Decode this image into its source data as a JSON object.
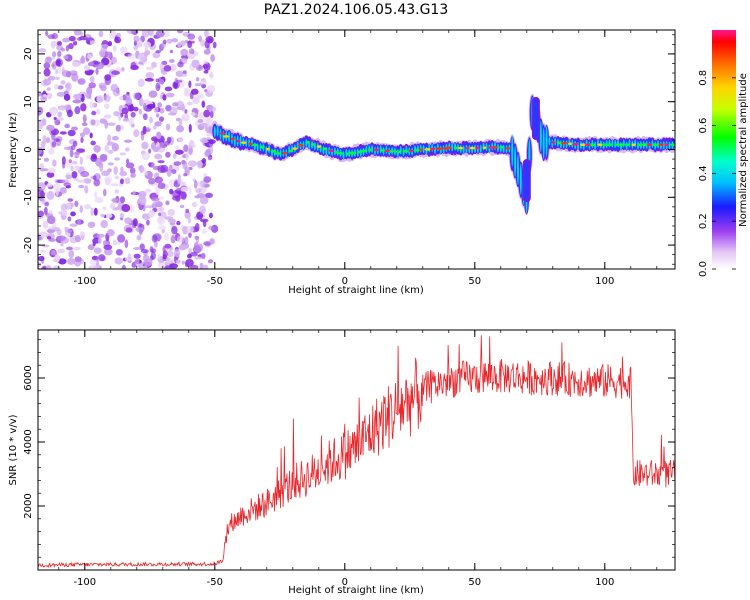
{
  "title": "PAZ1.2024.106.05.43.G13",
  "chart_data": [
    {
      "type": "heatmap",
      "xlabel": "Height of straight line (km)",
      "ylabel": "Frequency (Hz)",
      "xlim": [
        -118,
        127
      ],
      "ylim": [
        -25,
        25
      ],
      "xticks": [
        -100,
        -50,
        0,
        50,
        100
      ],
      "yticks": [
        -20,
        -10,
        0,
        10,
        20
      ],
      "colorbar": {
        "label": "Normalized spectral amplitude",
        "ticks": [
          "0.0",
          "0.2",
          "0.4",
          "0.6",
          "0.8"
        ],
        "range": [
          0,
          1
        ]
      },
      "ridge": {
        "x": [
          -50,
          -45,
          -40,
          -35,
          -30,
          -25,
          -20,
          -15,
          -10,
          -5,
          0,
          5,
          10,
          20,
          30,
          40,
          50,
          60,
          64,
          66,
          68,
          70,
          72,
          74,
          76,
          80,
          90,
          100,
          110,
          120,
          127
        ],
        "frequency": [
          4,
          2.5,
          1.5,
          1,
          0,
          -1,
          0,
          1.5,
          0.5,
          -0.5,
          -1,
          -0.5,
          0,
          -0.5,
          0,
          0.3,
          0.3,
          0.5,
          0,
          -3,
          -7,
          -10,
          8,
          6,
          1.5,
          1.5,
          1,
          1,
          1,
          1,
          1
        ]
      }
    },
    {
      "type": "line",
      "xlabel": "Height of straight line (km)",
      "ylabel": "SNR (10 * v/v)",
      "xlim": [
        -118,
        127
      ],
      "ylim": [
        0,
        7500
      ],
      "xticks": [
        -100,
        -50,
        0,
        50,
        100
      ],
      "yticks": [
        2000,
        4000,
        6000
      ],
      "series": [
        {
          "color": "#e8262b",
          "x": [
            -118,
            -110,
            -100,
            -90,
            -80,
            -70,
            -60,
            -50,
            -47,
            -45,
            -40,
            -35,
            -30,
            -25,
            -20,
            -15,
            -10,
            -5,
            0,
            5,
            10,
            15,
            20,
            25,
            30,
            35,
            40,
            45,
            50,
            55,
            60,
            65,
            70,
            75,
            80,
            85,
            90,
            95,
            100,
            105,
            110,
            111,
            115,
            120,
            127
          ],
          "y": [
            150,
            160,
            170,
            175,
            180,
            180,
            185,
            190,
            300,
            1300,
            1700,
            1900,
            2100,
            2400,
            2700,
            2900,
            3100,
            3400,
            3600,
            3900,
            4300,
            4700,
            5000,
            5300,
            5600,
            5800,
            5900,
            6000,
            6000,
            6050,
            6050,
            6050,
            6000,
            6000,
            6000,
            5950,
            5950,
            5900,
            5900,
            5900,
            5900,
            3000,
            3000,
            3000,
            3000
          ]
        }
      ]
    }
  ]
}
